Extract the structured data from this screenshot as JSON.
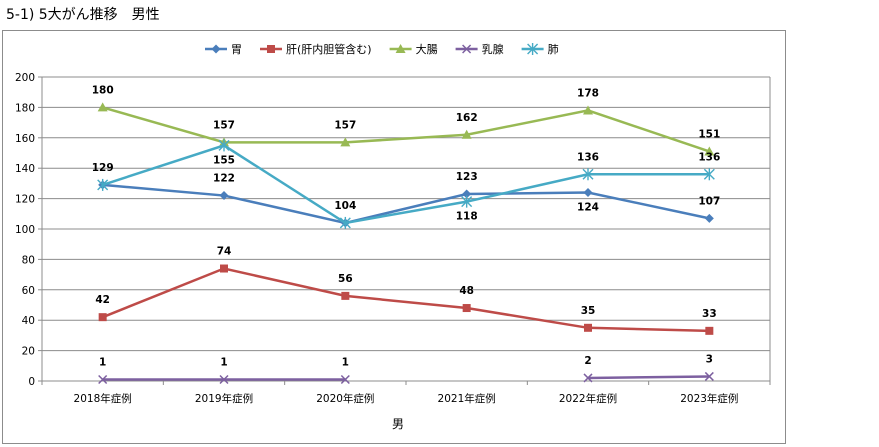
{
  "page": {
    "title": "5-1) 5大がん推移　男性"
  },
  "chart_data": {
    "type": "line",
    "title": "",
    "xlabel": "男",
    "ylabel": "",
    "categories": [
      "2018年症例",
      "2019年症例",
      "2020年症例",
      "2021年症例",
      "2022年症例",
      "2023年症例"
    ],
    "ylim": [
      0,
      200
    ],
    "yticks": [
      0,
      20,
      40,
      60,
      80,
      100,
      120,
      140,
      160,
      180,
      200
    ],
    "grid": true,
    "legend_position": "top",
    "series": [
      {
        "name": "胃",
        "color": "#4a7ebb",
        "marker": "diamond",
        "values": [
          129,
          122,
          104,
          123,
          124,
          107
        ],
        "label_pos": [
          "above",
          "above",
          "above",
          "above",
          "below",
          "above"
        ]
      },
      {
        "name": "肝(肝内胆管含む)",
        "color": "#be4b48",
        "marker": "square",
        "values": [
          42,
          74,
          56,
          48,
          35,
          33
        ],
        "label_pos": [
          "above",
          "above",
          "above",
          "above",
          "above",
          "above"
        ]
      },
      {
        "name": "大腸",
        "color": "#98b954",
        "marker": "triangle",
        "values": [
          180,
          157,
          157,
          162,
          178,
          151
        ],
        "label_pos": [
          "above",
          "above",
          "above",
          "above",
          "above",
          "above"
        ]
      },
      {
        "name": "乳腺",
        "color": "#7d60a0",
        "marker": "x",
        "values": [
          1,
          1,
          1,
          null,
          2,
          3
        ],
        "label_pos": [
          "above",
          "above",
          "above",
          "above",
          "above",
          "above"
        ]
      },
      {
        "name": "肺",
        "color": "#46aac5",
        "marker": "star",
        "values": [
          129,
          155,
          104,
          118,
          136,
          136
        ],
        "label_pos": [
          "none",
          "below",
          "none",
          "below",
          "above",
          "above"
        ]
      }
    ]
  }
}
